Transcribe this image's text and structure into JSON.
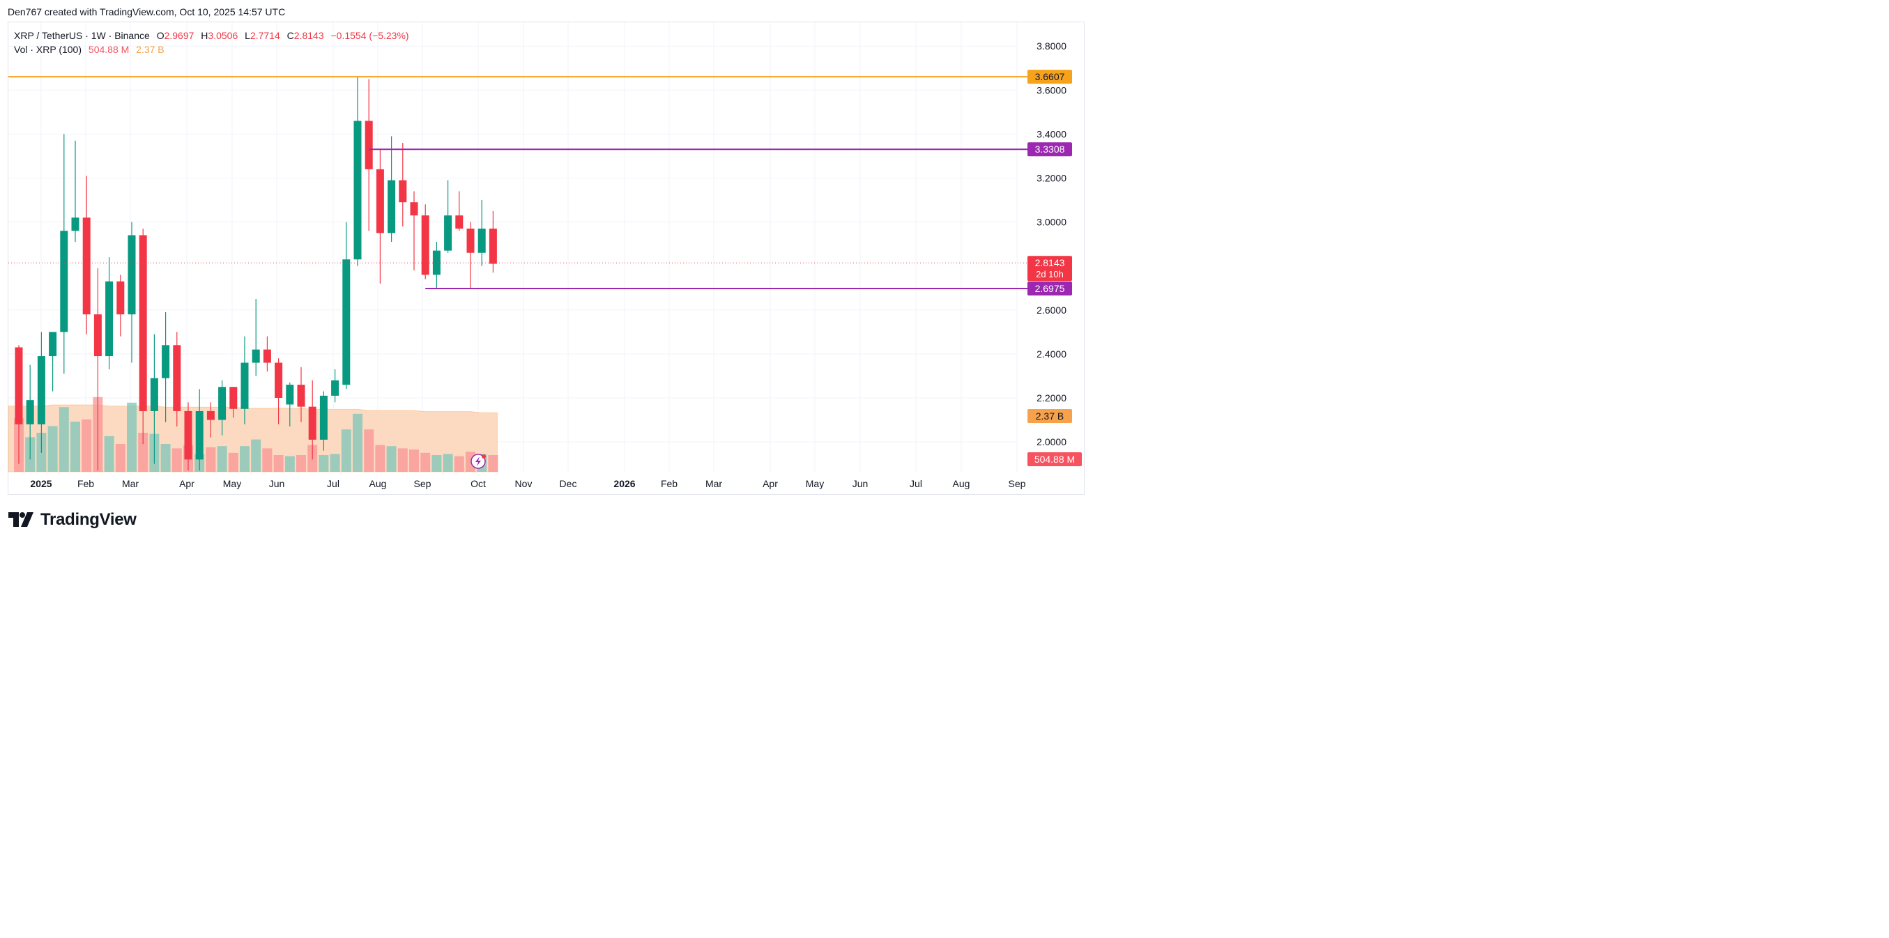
{
  "header": {
    "credit": "Den767 created with TradingView.com, Oct 10, 2025 14:57 UTC"
  },
  "legend": {
    "symbol": "XRP / TetherUS · 1W · Binance",
    "o_label": "O",
    "o_value": "2.9697",
    "h_label": "H",
    "h_value": "3.0506",
    "l_label": "L",
    "l_value": "2.7714",
    "c_label": "C",
    "c_value": "2.8143",
    "change": "−0.1554 (−5.23%)",
    "volume_label": "Vol · XRP (100)",
    "volume_value": "504.88 M",
    "volume_ma": "2.37 B"
  },
  "footer": {
    "brand": "TradingView"
  },
  "colors": {
    "up": "#089981",
    "down": "#f23645",
    "resistance": "#f7a21b",
    "level": "#9c27b0",
    "volume_ma_fill": "#fcd3b6"
  },
  "chart_data": {
    "type": "candlestick",
    "symbol": "XRP / TetherUS",
    "interval": "1W",
    "y_axis_ticks": [
      "3.8000",
      "3.6000",
      "3.4000",
      "3.2000",
      "3.0000",
      "2.6000",
      "2.4000",
      "2.2000",
      "2.0000"
    ],
    "x_axis_labels": [
      "2025",
      "Feb",
      "Mar",
      "Apr",
      "May",
      "Jun",
      "Jul",
      "Aug",
      "Sep",
      "Oct",
      "Nov",
      "Dec",
      "2026",
      "Feb",
      "Mar",
      "Apr",
      "May",
      "Jun",
      "Jul",
      "Aug",
      "Sep"
    ],
    "ylim": [
      1.87,
      3.89
    ],
    "horizontal_lines": [
      {
        "price": 3.6607,
        "label": "3.6607",
        "color": "#f7a21b"
      },
      {
        "price": 3.3308,
        "label": "3.3308",
        "color": "#9c27b0"
      },
      {
        "price": 2.6975,
        "label": "2.6975",
        "color": "#9c27b0"
      }
    ],
    "price_marker": {
      "label": "2.8143",
      "countdown": "2d 10h",
      "price": 2.8143
    },
    "volume_markers": {
      "ma": "2.37 B",
      "current": "504.88 M"
    },
    "candles": [
      {
        "o": 2.43,
        "h": 2.44,
        "l": 1.9,
        "c": 2.08
      },
      {
        "o": 2.08,
        "h": 2.35,
        "l": 1.92,
        "c": 2.19
      },
      {
        "o": 2.08,
        "h": 2.5,
        "l": 1.95,
        "c": 2.39
      },
      {
        "o": 2.39,
        "h": 2.5,
        "l": 2.23,
        "c": 2.5
      },
      {
        "o": 2.5,
        "h": 3.4,
        "l": 2.31,
        "c": 2.96
      },
      {
        "o": 2.96,
        "h": 3.37,
        "l": 2.91,
        "c": 3.02
      },
      {
        "o": 3.02,
        "h": 3.21,
        "l": 2.49,
        "c": 2.58
      },
      {
        "o": 2.58,
        "h": 2.79,
        "l": 1.87,
        "c": 2.39
      },
      {
        "o": 2.39,
        "h": 2.84,
        "l": 2.33,
        "c": 2.73
      },
      {
        "o": 2.73,
        "h": 2.76,
        "l": 2.48,
        "c": 2.58
      },
      {
        "o": 2.58,
        "h": 3.0,
        "l": 2.36,
        "c": 2.94
      },
      {
        "o": 2.94,
        "h": 2.97,
        "l": 1.99,
        "c": 2.14
      },
      {
        "o": 2.14,
        "h": 2.49,
        "l": 1.9,
        "c": 2.29
      },
      {
        "o": 2.29,
        "h": 2.59,
        "l": 2.09,
        "c": 2.44
      },
      {
        "o": 2.44,
        "h": 2.5,
        "l": 2.07,
        "c": 2.14
      },
      {
        "o": 2.14,
        "h": 2.18,
        "l": 1.87,
        "c": 1.92
      },
      {
        "o": 1.92,
        "h": 2.24,
        "l": 1.87,
        "c": 2.14
      },
      {
        "o": 2.14,
        "h": 2.18,
        "l": 2.02,
        "c": 2.1
      },
      {
        "o": 2.1,
        "h": 2.28,
        "l": 2.03,
        "c": 2.25
      },
      {
        "o": 2.25,
        "h": 2.25,
        "l": 2.11,
        "c": 2.15
      },
      {
        "o": 2.15,
        "h": 2.48,
        "l": 2.08,
        "c": 2.36
      },
      {
        "o": 2.36,
        "h": 2.65,
        "l": 2.3,
        "c": 2.42
      },
      {
        "o": 2.42,
        "h": 2.48,
        "l": 2.32,
        "c": 2.36
      },
      {
        "o": 2.36,
        "h": 2.38,
        "l": 2.08,
        "c": 2.2
      },
      {
        "o": 2.17,
        "h": 2.27,
        "l": 2.07,
        "c": 2.26
      },
      {
        "o": 2.26,
        "h": 2.34,
        "l": 2.09,
        "c": 2.16
      },
      {
        "o": 2.16,
        "h": 2.28,
        "l": 1.92,
        "c": 2.01
      },
      {
        "o": 2.01,
        "h": 2.23,
        "l": 1.96,
        "c": 2.21
      },
      {
        "o": 2.21,
        "h": 2.33,
        "l": 2.18,
        "c": 2.28
      },
      {
        "o": 2.26,
        "h": 3.0,
        "l": 2.24,
        "c": 2.83
      },
      {
        "o": 2.83,
        "h": 3.66,
        "l": 2.8,
        "c": 3.46
      },
      {
        "o": 3.46,
        "h": 3.65,
        "l": 2.96,
        "c": 3.24
      },
      {
        "o": 3.24,
        "h": 3.33,
        "l": 2.72,
        "c": 2.95
      },
      {
        "o": 2.95,
        "h": 3.39,
        "l": 2.91,
        "c": 3.19
      },
      {
        "o": 3.19,
        "h": 3.36,
        "l": 2.98,
        "c": 3.09
      },
      {
        "o": 3.09,
        "h": 3.14,
        "l": 2.78,
        "c": 3.03
      },
      {
        "o": 3.03,
        "h": 3.08,
        "l": 2.74,
        "c": 2.76
      },
      {
        "o": 2.76,
        "h": 2.91,
        "l": 2.7,
        "c": 2.87
      },
      {
        "o": 2.87,
        "h": 3.19,
        "l": 2.86,
        "c": 3.03
      },
      {
        "o": 3.03,
        "h": 3.14,
        "l": 2.96,
        "c": 2.97
      },
      {
        "o": 2.97,
        "h": 3.0,
        "l": 2.7,
        "c": 2.86
      },
      {
        "o": 2.86,
        "h": 3.1,
        "l": 2.8,
        "c": 2.97
      },
      {
        "o": 2.97,
        "h": 3.05,
        "l": 2.77,
        "c": 2.81
      }
    ],
    "volume_relative": [
      0.48,
      0.31,
      0.35,
      0.41,
      0.58,
      0.45,
      0.47,
      0.67,
      0.32,
      0.25,
      0.62,
      0.35,
      0.34,
      0.25,
      0.21,
      0.24,
      0.16,
      0.22,
      0.23,
      0.17,
      0.23,
      0.29,
      0.21,
      0.15,
      0.14,
      0.15,
      0.24,
      0.15,
      0.16,
      0.38,
      0.52,
      0.38,
      0.24,
      0.23,
      0.21,
      0.2,
      0.17,
      0.15,
      0.16,
      0.14,
      0.18,
      0.16,
      0.15
    ],
    "volume_ma_relative": [
      0.59,
      0.59,
      0.59,
      0.6,
      0.6,
      0.6,
      0.6,
      0.6,
      0.59,
      0.59,
      0.59,
      0.59,
      0.59,
      0.58,
      0.58,
      0.58,
      0.58,
      0.58,
      0.58,
      0.58,
      0.57,
      0.57,
      0.57,
      0.57,
      0.57,
      0.57,
      0.56,
      0.56,
      0.56,
      0.56,
      0.56,
      0.55,
      0.55,
      0.55,
      0.55,
      0.55,
      0.54,
      0.54,
      0.54,
      0.54,
      0.54,
      0.53,
      0.53
    ]
  }
}
